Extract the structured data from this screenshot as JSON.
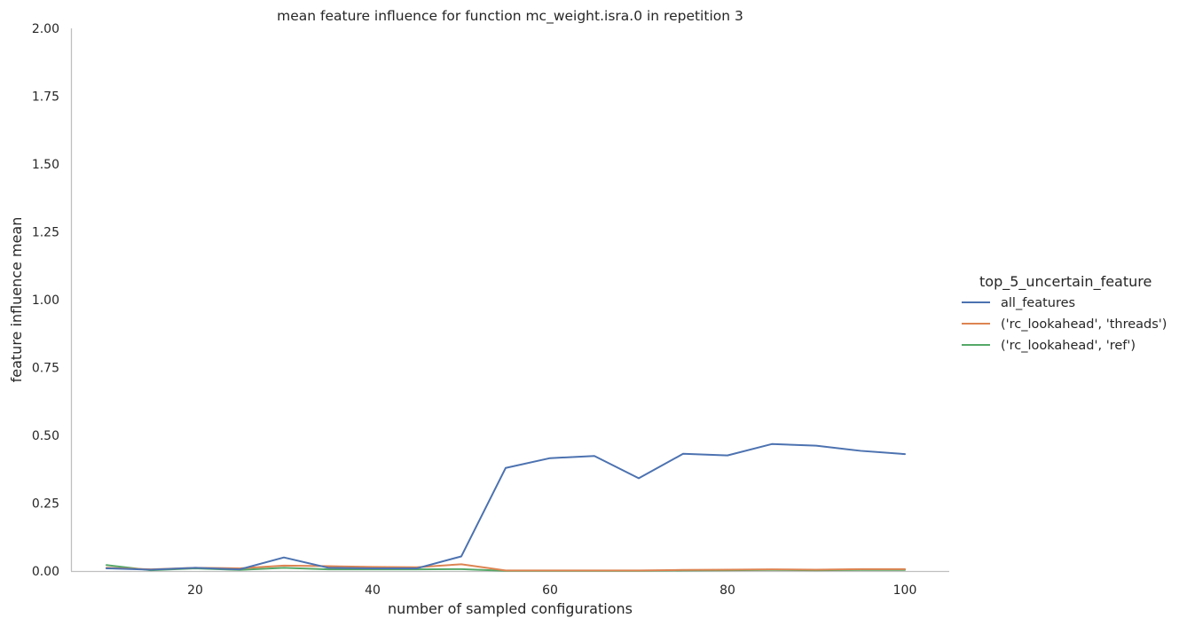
{
  "chart_data": {
    "type": "line",
    "title": "mean feature influence for function mc_weight.isra.0 in repetition 3",
    "xlabel": "number of sampled configurations",
    "ylabel": "feature influence mean",
    "xlim": [
      6,
      105
    ],
    "ylim": [
      0,
      2.0
    ],
    "xticks": [
      "20",
      "40",
      "60",
      "80",
      "100"
    ],
    "yticks": [
      "0.00",
      "0.25",
      "0.50",
      "0.75",
      "1.00",
      "1.25",
      "1.50",
      "1.75",
      "2.00"
    ],
    "grid": false,
    "legend": {
      "title": "top_5_uncertain_feature",
      "placement": "right"
    },
    "x": [
      10,
      15,
      20,
      25,
      30,
      35,
      40,
      45,
      50,
      55,
      60,
      65,
      70,
      75,
      80,
      85,
      90,
      95,
      100
    ],
    "series": [
      {
        "name": "all_features",
        "color": "#4c72b0",
        "values": [
          0.01,
          0.005,
          0.012,
          0.006,
          0.05,
          0.012,
          0.01,
          0.01,
          0.054,
          0.38,
          0.416,
          0.424,
          0.342,
          0.432,
          0.426,
          0.468,
          0.462,
          0.443,
          0.431
        ]
      },
      {
        "name": "('rc_lookahead', 'threads')",
        "color": "#dd8452",
        "values": [
          0.012,
          0.006,
          0.012,
          0.01,
          0.02,
          0.018,
          0.015,
          0.014,
          0.025,
          0.002,
          0.002,
          0.002,
          0.002,
          0.004,
          0.005,
          0.006,
          0.005,
          0.007,
          0.007
        ]
      },
      {
        "name": "('rc_lookahead', 'ref')",
        "color": "#55a868",
        "values": [
          0.022,
          0.003,
          0.01,
          0.004,
          0.012,
          0.006,
          0.006,
          0.006,
          0.007,
          0.001,
          0.001,
          0.001,
          0.001,
          0.002,
          0.003,
          0.004,
          0.003,
          0.004,
          0.004
        ]
      }
    ]
  }
}
